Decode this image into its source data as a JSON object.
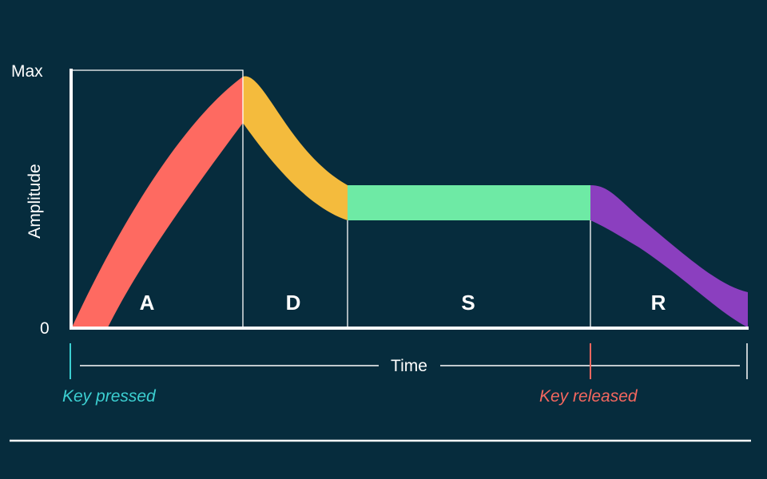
{
  "colors": {
    "background": "#062c3d",
    "axis": "#ffffff",
    "attack": "#fe6a61",
    "decay": "#f4bb3d",
    "sustain": "#6eeaa5",
    "release": "#8b3fbf",
    "key_pressed": "#3ccfd1",
    "key_released": "#f4675f"
  },
  "axes": {
    "y_label": "Amplitude",
    "y_max_label": "Max",
    "y_min_label": "0",
    "x_label": "Time"
  },
  "stages": [
    {
      "id": "attack",
      "label": "A"
    },
    {
      "id": "decay",
      "label": "D"
    },
    {
      "id": "sustain",
      "label": "S"
    },
    {
      "id": "release",
      "label": "R"
    }
  ],
  "markers": {
    "key_pressed": "Key pressed",
    "key_released": "Key released"
  }
}
